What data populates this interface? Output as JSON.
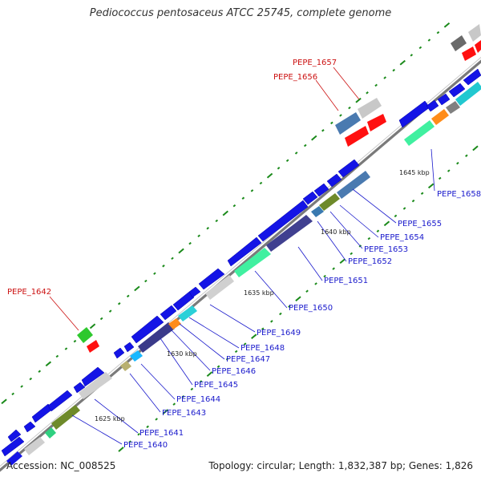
{
  "header": {
    "title": "Pediococcus pentosaceus ATCC 25745, complete genome"
  },
  "footer": {
    "accession": "Accession: NC_008525",
    "stats": "Topology: circular; Length: 1,832,387 bp; Genes: 1,826"
  },
  "colors": {
    "backbone": "#8a8a8a",
    "forward_gene": "#1010e0",
    "label_blue": "#1a1acc",
    "label_red": "#cc1111",
    "tick_green": "#1a8a1a"
  },
  "ticks": [
    {
      "label": "1625 kbp"
    },
    {
      "label": "1630 kbp"
    },
    {
      "label": "1635 kbp"
    },
    {
      "label": "1640 kbp"
    },
    {
      "label": "1645 kbp"
    }
  ],
  "labels": [
    {
      "text": "PEPE_1640",
      "color": "blue"
    },
    {
      "text": "PEPE_1641",
      "color": "blue"
    },
    {
      "text": "PEPE_1642",
      "color": "red"
    },
    {
      "text": "PEPE_1643",
      "color": "blue"
    },
    {
      "text": "PEPE_1644",
      "color": "blue"
    },
    {
      "text": "PEPE_1645",
      "color": "blue"
    },
    {
      "text": "PEPE_1646",
      "color": "blue"
    },
    {
      "text": "PEPE_1647",
      "color": "blue"
    },
    {
      "text": "PEPE_1648",
      "color": "blue"
    },
    {
      "text": "PEPE_1649",
      "color": "blue"
    },
    {
      "text": "PEPE_1650",
      "color": "blue"
    },
    {
      "text": "PEPE_1651",
      "color": "blue"
    },
    {
      "text": "PEPE_1652",
      "color": "blue"
    },
    {
      "text": "PEPE_1653",
      "color": "blue"
    },
    {
      "text": "PEPE_1654",
      "color": "blue"
    },
    {
      "text": "PEPE_1655",
      "color": "blue"
    },
    {
      "text": "PEPE_1656",
      "color": "red"
    },
    {
      "text": "PEPE_1657",
      "color": "red"
    },
    {
      "text": "PEPE_1658",
      "color": "blue"
    }
  ]
}
